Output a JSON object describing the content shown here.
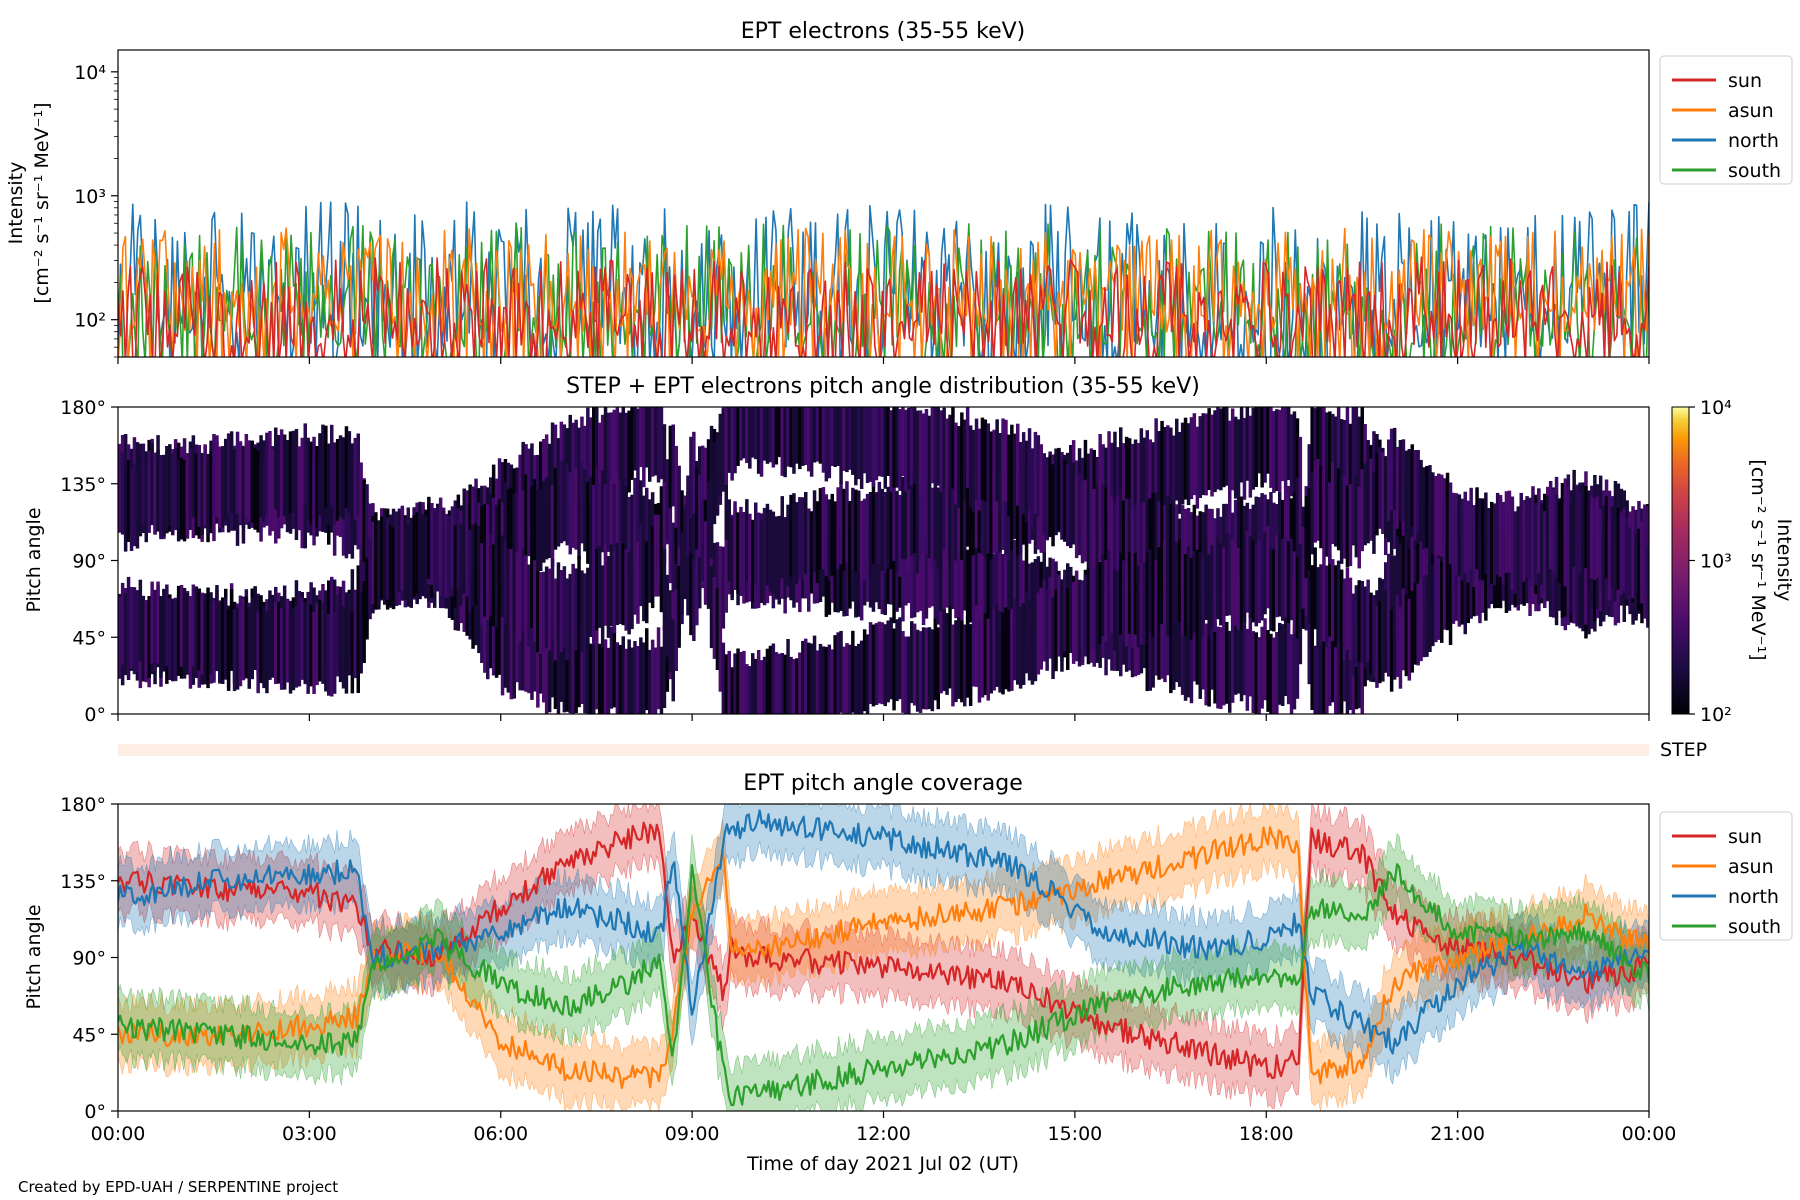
{
  "figure": {
    "credit": "Created by EPD-UAH / SERPENTINE project"
  },
  "chart_data": [
    {
      "type": "line",
      "title": "EPT electrons (35-55 keV)",
      "ylabel_line1": "Intensity",
      "ylabel_line2": "[cm⁻² s⁻¹ sr⁻¹ MeV⁻¹]",
      "yscale": "log",
      "ylim": [
        50,
        15000
      ],
      "yticks": [
        {
          "value": 100,
          "label": "10²"
        },
        {
          "value": 1000,
          "label": "10³"
        },
        {
          "value": 10000,
          "label": "10⁴"
        }
      ],
      "xlim_hours": [
        0,
        24
      ],
      "xticks_hours": [
        0,
        3,
        6,
        9,
        12,
        15,
        18,
        21,
        24
      ],
      "legend_position": "outside-right",
      "series": [
        {
          "name": "sun",
          "color": "#d62728",
          "typical_range": [
            60,
            320
          ]
        },
        {
          "name": "asun",
          "color": "#ff7f0e",
          "typical_range": [
            80,
            550
          ]
        },
        {
          "name": "north",
          "color": "#1f77b4",
          "typical_range": [
            60,
            900
          ]
        },
        {
          "name": "south",
          "color": "#2ca02c",
          "typical_range": [
            60,
            600
          ]
        }
      ]
    },
    {
      "type": "heatmap",
      "title": "STEP + EPT electrons pitch angle distribution (35-55 keV)",
      "ylabel": "Pitch angle",
      "ylim": [
        0,
        180
      ],
      "yticks": [
        {
          "value": 0,
          "label": "0°"
        },
        {
          "value": 45,
          "label": "45°"
        },
        {
          "value": 90,
          "label": "90°"
        },
        {
          "value": 135,
          "label": "135°"
        },
        {
          "value": 180,
          "label": "180°"
        }
      ],
      "xlim_hours": [
        0,
        24
      ],
      "xticks_hours": [
        0,
        3,
        6,
        9,
        12,
        15,
        18,
        21,
        24
      ],
      "colorbar": {
        "label_line1": "Intensity",
        "label_line2": "[cm⁻² s⁻¹ sr⁻¹ MeV⁻¹]",
        "scale": "log",
        "range": [
          100,
          10000
        ],
        "ticks": [
          {
            "value": 100,
            "label": "10²"
          },
          {
            "value": 1000,
            "label": "10³"
          },
          {
            "value": 10000,
            "label": "10⁴"
          }
        ],
        "colormap": "inferno"
      }
    },
    {
      "type": "bar",
      "label": "STEP",
      "color": "#fdeee6"
    },
    {
      "type": "line",
      "title": "EPT pitch angle coverage",
      "ylabel": "Pitch angle",
      "xlabel": "Time of day 2021 Jul 02 (UT)",
      "ylim": [
        0,
        180
      ],
      "yticks": [
        {
          "value": 0,
          "label": "0°"
        },
        {
          "value": 45,
          "label": "45°"
        },
        {
          "value": 90,
          "label": "90°"
        },
        {
          "value": 135,
          "label": "135°"
        },
        {
          "value": 180,
          "label": "180°"
        }
      ],
      "xlim_hours": [
        0,
        24
      ],
      "xticks": [
        {
          "value": 0,
          "label": "00:00"
        },
        {
          "value": 3,
          "label": "03:00"
        },
        {
          "value": 6,
          "label": "06:00"
        },
        {
          "value": 9,
          "label": "09:00"
        },
        {
          "value": 12,
          "label": "12:00"
        },
        {
          "value": 15,
          "label": "15:00"
        },
        {
          "value": 18,
          "label": "18:00"
        },
        {
          "value": 21,
          "label": "21:00"
        },
        {
          "value": 24,
          "label": "00:00"
        }
      ],
      "legend_position": "outside-right",
      "band_halfwidth_deg": 18,
      "series": [
        {
          "name": "sun",
          "color": "#d62728",
          "hours": [
            0,
            1.5,
            3,
            3.75,
            4,
            5,
            6,
            7,
            8,
            8.5,
            8.7,
            9,
            9.5,
            9.6,
            10,
            12,
            14,
            15.5,
            17,
            18,
            18.5,
            18.7,
            19.5,
            20,
            21,
            22,
            23,
            24
          ],
          "values": [
            135,
            130,
            128,
            120,
            95,
            90,
            120,
            145,
            160,
            165,
            90,
            110,
            70,
            95,
            90,
            85,
            75,
            50,
            35,
            25,
            30,
            160,
            150,
            115,
            95,
            90,
            75,
            85
          ]
        },
        {
          "name": "asun",
          "color": "#ff7f0e",
          "hours": [
            0,
            1.5,
            3,
            3.75,
            4,
            5,
            6,
            7,
            8,
            8.5,
            8.7,
            9,
            9.5,
            9.6,
            10,
            12,
            14,
            15.5,
            17,
            18,
            18.5,
            18.7,
            19.5,
            20,
            21,
            22,
            23,
            24
          ],
          "values": [
            45,
            45,
            50,
            55,
            90,
            95,
            40,
            25,
            20,
            20,
            50,
            120,
            150,
            95,
            95,
            110,
            120,
            135,
            150,
            160,
            155,
            20,
            30,
            75,
            90,
            100,
            115,
            95
          ]
        },
        {
          "name": "north",
          "color": "#1f77b4",
          "hours": [
            0,
            1.5,
            3,
            3.75,
            4,
            5,
            6,
            7,
            8,
            8.5,
            8.7,
            9,
            9.5,
            9.6,
            10,
            12,
            14,
            15.5,
            17,
            18,
            18.5,
            18.7,
            19.5,
            20,
            21,
            22,
            23,
            24
          ],
          "values": [
            125,
            135,
            140,
            140,
            90,
            95,
            105,
            120,
            110,
            100,
            150,
            60,
            160,
            165,
            170,
            160,
            145,
            105,
            95,
            100,
            110,
            70,
            50,
            40,
            75,
            95,
            80,
            95
          ]
        },
        {
          "name": "south",
          "color": "#2ca02c",
          "hours": [
            0,
            1.5,
            3,
            3.75,
            4,
            5,
            6,
            7,
            8,
            8.5,
            8.7,
            9,
            9.5,
            9.6,
            10,
            12,
            14,
            15.5,
            17,
            18,
            18.5,
            18.7,
            19.5,
            20,
            21,
            22,
            23,
            24
          ],
          "values": [
            50,
            45,
            40,
            40,
            85,
            100,
            75,
            60,
            75,
            90,
            30,
            140,
            20,
            10,
            10,
            25,
            40,
            65,
            75,
            80,
            75,
            120,
            115,
            140,
            105,
            100,
            105,
            80
          ]
        }
      ]
    }
  ]
}
